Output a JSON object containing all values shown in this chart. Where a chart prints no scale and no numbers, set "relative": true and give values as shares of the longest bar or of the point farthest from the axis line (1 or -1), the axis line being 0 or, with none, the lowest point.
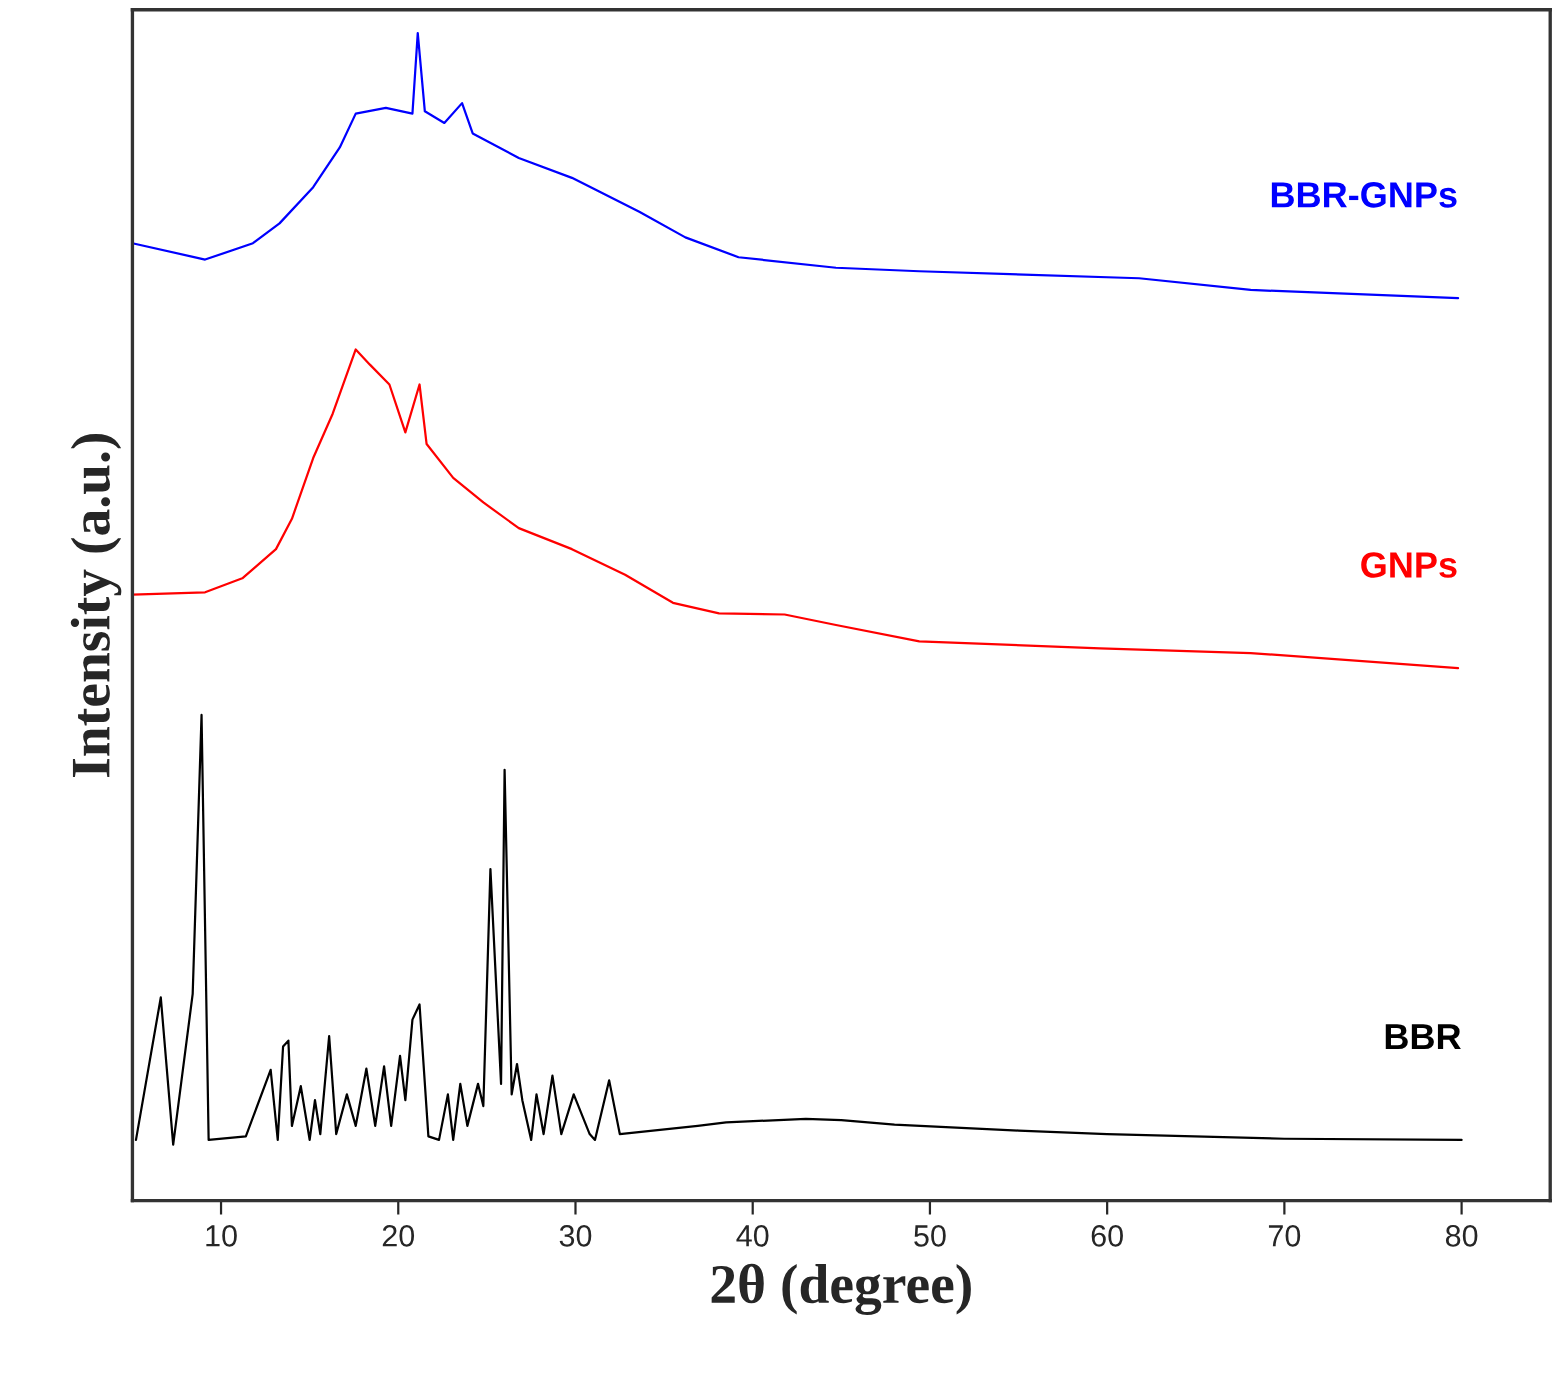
{
  "chart_data": {
    "type": "line",
    "relative": true,
    "xlabel": "2θ (degree)",
    "ylabel": "Intensity (a.u.)",
    "xlim": [
      5,
      85
    ],
    "xticks": [
      10,
      20,
      30,
      40,
      50,
      60,
      70,
      80
    ],
    "grid": false,
    "legend": false,
    "marker": "none",
    "line_style": "solid",
    "series": [
      {
        "name": "BBR-GNPs",
        "color": "#0000ff",
        "x": [
          5,
          9.1,
          11.8,
          13.3,
          15.2,
          16.7,
          17.6,
          19.3,
          20.8,
          21.1,
          21.5,
          22.6,
          23.6,
          24.2,
          26.8,
          29.8,
          33.6,
          36.2,
          39.2,
          44.7,
          49.4,
          61.8,
          68.1,
          79.8
        ],
        "values": [
          0.82,
          0.806,
          0.82,
          0.837,
          0.868,
          0.902,
          0.931,
          0.936,
          0.931,
          1.0,
          0.933,
          0.923,
          0.94,
          0.914,
          0.893,
          0.876,
          0.847,
          0.825,
          0.808,
          0.799,
          0.796,
          0.79,
          0.78,
          0.773
        ]
      },
      {
        "name": "GNPs",
        "color": "#ff0000",
        "x": [
          5,
          9.1,
          11.2,
          13.1,
          14.0,
          15.2,
          16.3,
          17.6,
          18.4,
          19.5,
          20.4,
          21.2,
          21.6,
          23.1,
          24.8,
          26.8,
          29.8,
          32.8,
          35.5,
          38.1,
          41.8,
          44.7,
          49.4,
          59.6,
          68.1,
          79.8
        ],
        "values": [
          0.519,
          0.521,
          0.533,
          0.558,
          0.584,
          0.636,
          0.674,
          0.729,
          0.716,
          0.699,
          0.658,
          0.699,
          0.648,
          0.619,
          0.598,
          0.576,
          0.558,
          0.536,
          0.512,
          0.503,
          0.502,
          0.493,
          0.479,
          0.473,
          0.469,
          0.456
        ]
      },
      {
        "name": "BBR",
        "color": "#000000",
        "x": [
          5.2,
          6.6,
          7.3,
          8.4,
          8.9,
          9.3,
          11.4,
          12.8,
          13.2,
          13.5,
          13.8,
          14.0,
          14.5,
          15.0,
          15.3,
          15.6,
          16.1,
          16.5,
          17.1,
          17.6,
          18.2,
          18.7,
          19.2,
          19.6,
          20.1,
          20.4,
          20.8,
          21.2,
          21.7,
          22.3,
          22.8,
          23.1,
          23.5,
          23.9,
          24.5,
          24.8,
          25.2,
          25.8,
          26.0,
          26.4,
          26.7,
          27.0,
          27.5,
          27.8,
          28.2,
          28.7,
          29.2,
          29.9,
          30.8,
          31.1,
          31.9,
          32.5,
          36.9,
          38.5,
          43.0,
          45.0,
          48.0,
          55.0,
          60.0,
          70.0,
          80.0
        ],
        "values": [
          0.052,
          0.174,
          0.048,
          0.177,
          0.416,
          0.052,
          0.055,
          0.112,
          0.052,
          0.132,
          0.137,
          0.064,
          0.098,
          0.052,
          0.086,
          0.057,
          0.141,
          0.057,
          0.091,
          0.064,
          0.113,
          0.064,
          0.115,
          0.064,
          0.124,
          0.086,
          0.155,
          0.168,
          0.055,
          0.052,
          0.091,
          0.052,
          0.1,
          0.064,
          0.1,
          0.081,
          0.284,
          0.1,
          0.369,
          0.091,
          0.117,
          0.086,
          0.052,
          0.091,
          0.057,
          0.107,
          0.057,
          0.091,
          0.057,
          0.052,
          0.103,
          0.057,
          0.064,
          0.067,
          0.07,
          0.069,
          0.065,
          0.06,
          0.057,
          0.053,
          0.052
        ]
      }
    ]
  }
}
